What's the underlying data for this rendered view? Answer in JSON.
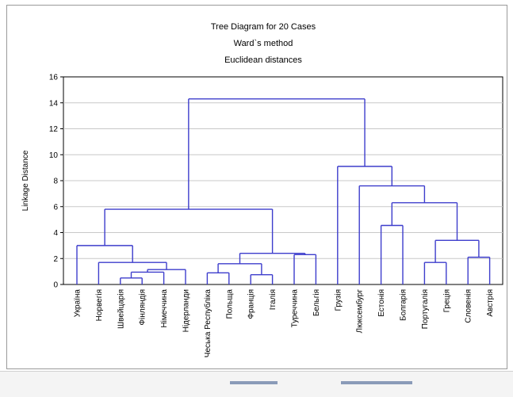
{
  "chart_data": {
    "type": "dendrogram",
    "title_lines": [
      "Tree Diagram for 20 Cases",
      "Ward`s method",
      "Euclidean distances"
    ],
    "ylabel": "Linkage Distance",
    "ylim": [
      0,
      16
    ],
    "y_ticks": [
      0,
      2,
      4,
      6,
      8,
      10,
      12,
      14,
      16
    ],
    "grid": true,
    "leaves": [
      "Україна",
      "Норвегія",
      "Швейцарія",
      "Фінляндія",
      "Німеччина",
      "Нідерланди",
      "Чеська Республіка",
      "Польща",
      "Франція",
      "Італія",
      "Туреччина",
      "Бельгія",
      "Грузія",
      "Люксембург",
      "Естонія",
      "Болгарія",
      "Португалія",
      "Греція",
      "Словенія",
      "Австрія"
    ],
    "merges": [
      {
        "a": "Швейцарія",
        "b": "Фінляндія",
        "height": 0.5
      },
      {
        "a": "Франція",
        "b": "Італія",
        "height": 0.75
      },
      {
        "a": "Чеська Республіка",
        "b": "Польща",
        "height": 0.9
      },
      {
        "a": "m0",
        "b": "Німеччина",
        "height": 0.95
      },
      {
        "a": "m3",
        "b": "Нідерланди",
        "height": 1.15
      },
      {
        "a": "m2",
        "b": "m1",
        "height": 1.6
      },
      {
        "a": "Португалія",
        "b": "Греція",
        "height": 1.7
      },
      {
        "a": "Словенія",
        "b": "Австрія",
        "height": 2.1
      },
      {
        "a": "Туреччина",
        "b": "Бельгія",
        "height": 2.3
      },
      {
        "a": "m5",
        "b": "m8",
        "height": 2.4
      },
      {
        "a": "Норвегія",
        "b": "m4",
        "height": 1.7
      },
      {
        "a": "Україна",
        "b": "m10",
        "height": 3.0
      },
      {
        "a": "m6",
        "b": "m7",
        "height": 3.4
      },
      {
        "a": "Естонія",
        "b": "Болгарія",
        "height": 4.55
      },
      {
        "a": "m11",
        "b": "m9",
        "height": 5.8
      },
      {
        "a": "m13",
        "b": "m12",
        "height": 6.3
      },
      {
        "a": "Люксембург",
        "b": "m15",
        "height": 7.6
      },
      {
        "a": "Грузія",
        "b": "m16",
        "height": 9.1
      },
      {
        "a": "m14",
        "b": "m17",
        "height": 14.3
      }
    ],
    "colors": {
      "link": "#3d3dcc",
      "grid": "#c8c8c8"
    }
  }
}
